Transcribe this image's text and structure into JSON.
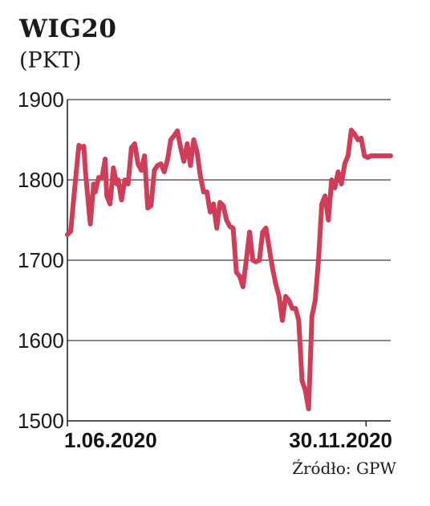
{
  "chart_data": {
    "type": "line",
    "title": "WIG20",
    "subtitle": "(PKT)",
    "source": "Źródło: GPW",
    "ylim": [
      1500,
      1900
    ],
    "yticks": [
      {
        "value": 1900,
        "label": "1900"
      },
      {
        "value": 1800,
        "label": "1800"
      },
      {
        "value": 1700,
        "label": "1700"
      },
      {
        "value": 1600,
        "label": "1600"
      },
      {
        "value": 1500,
        "label": "1500"
      }
    ],
    "x_range": [
      "2020-06-01",
      "2020-12-15"
    ],
    "xticks": [
      {
        "date": "2020-06-01",
        "label": "1.06.2020"
      },
      {
        "date": "2020-11-30",
        "label": "30.11.2020"
      }
    ],
    "grid": true,
    "color": "#d03d58",
    "series": [
      {
        "x": [
          "2020-06-01",
          "2020-06-03",
          "2020-06-05",
          "2020-06-08",
          "2020-06-10",
          "2020-06-11",
          "2020-06-12",
          "2020-06-15",
          "2020-06-17",
          "2020-06-18",
          "2020-06-20",
          "2020-06-22",
          "2020-06-24",
          "2020-06-25",
          "2020-06-27",
          "2020-06-29",
          "2020-07-01",
          "2020-07-02",
          "2020-07-04",
          "2020-07-06",
          "2020-07-08",
          "2020-07-10",
          "2020-07-12",
          "2020-07-14",
          "2020-07-16",
          "2020-07-18",
          "2020-07-20",
          "2020-07-22",
          "2020-07-24",
          "2020-07-26",
          "2020-07-28",
          "2020-07-30",
          "2020-08-01",
          "2020-08-03",
          "2020-08-05",
          "2020-08-07",
          "2020-08-09",
          "2020-08-11",
          "2020-08-13",
          "2020-08-15",
          "2020-08-17",
          "2020-08-19",
          "2020-08-21",
          "2020-08-23",
          "2020-08-25",
          "2020-08-27",
          "2020-08-29",
          "2020-08-31",
          "2020-09-02",
          "2020-09-04",
          "2020-09-06",
          "2020-09-08",
          "2020-09-10",
          "2020-09-12",
          "2020-09-14",
          "2020-09-16",
          "2020-09-18",
          "2020-09-20",
          "2020-09-22",
          "2020-09-24",
          "2020-09-26",
          "2020-09-28",
          "2020-09-30",
          "2020-10-02",
          "2020-10-04",
          "2020-10-06",
          "2020-10-08",
          "2020-10-10",
          "2020-10-12",
          "2020-10-14",
          "2020-10-16",
          "2020-10-18",
          "2020-10-20",
          "2020-10-22",
          "2020-10-24",
          "2020-10-26",
          "2020-10-28",
          "2020-10-30",
          "2020-11-01",
          "2020-11-03",
          "2020-11-05",
          "2020-11-07",
          "2020-11-09",
          "2020-11-11",
          "2020-11-13",
          "2020-11-15",
          "2020-11-17",
          "2020-11-19",
          "2020-11-21",
          "2020-11-23",
          "2020-11-25",
          "2020-11-27",
          "2020-11-29",
          "2020-12-01",
          "2020-12-03",
          "2020-12-05",
          "2020-12-07",
          "2020-12-09",
          "2020-12-11",
          "2020-12-13",
          "2020-12-15"
        ],
        "values": [
          1732,
          1736,
          1780,
          1843,
          1840,
          1842,
          1810,
          1745,
          1795,
          1785,
          1803,
          1802,
          1826,
          1780,
          1770,
          1815,
          1795,
          1800,
          1775,
          1800,
          1795,
          1840,
          1845,
          1820,
          1812,
          1830,
          1765,
          1768,
          1812,
          1818,
          1820,
          1810,
          1825,
          1850,
          1855,
          1861,
          1840,
          1823,
          1845,
          1818,
          1850,
          1835,
          1805,
          1785,
          1785,
          1760,
          1770,
          1740,
          1772,
          1768,
          1750,
          1742,
          1740,
          1685,
          1680,
          1667,
          1700,
          1735,
          1700,
          1698,
          1700,
          1735,
          1740,
          1715,
          1690,
          1670,
          1655,
          1625,
          1655,
          1650,
          1640,
          1640,
          1625,
          1550,
          1538,
          1515,
          1630,
          1650,
          1700,
          1770,
          1780,
          1750,
          1800,
          1790,
          1810,
          1795,
          1820,
          1830,
          1862,
          1857,
          1850,
          1852,
          1830,
          1828,
          1830,
          1830,
          1830,
          1830,
          1830,
          1830,
          1830
        ]
      }
    ]
  }
}
